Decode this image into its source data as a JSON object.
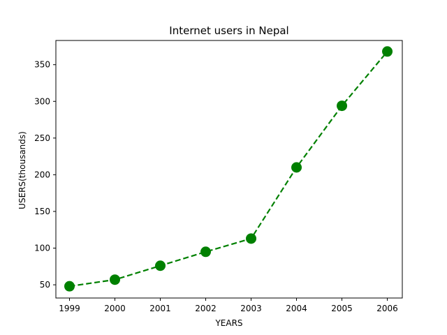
{
  "chart_data": {
    "type": "line",
    "title": "Internet users in Nepal",
    "xlabel": "YEARS",
    "ylabel": "USERS(thousands)",
    "x": [
      1999,
      2000,
      2001,
      2002,
      2003,
      2004,
      2005,
      2006
    ],
    "series": [
      {
        "values": [
          48,
          57,
          76,
          95,
          113,
          210,
          294,
          368
        ],
        "color": "#008000",
        "line_style": "dashed",
        "marker": "circle"
      }
    ],
    "xlim": [
      1998.7,
      2006.33
    ],
    "ylim": [
      32.0,
      383.0
    ],
    "xticks": [
      1999,
      2000,
      2001,
      2002,
      2003,
      2004,
      2005,
      2006
    ],
    "yticks": [
      50,
      100,
      150,
      200,
      250,
      300,
      350
    ],
    "grid": false,
    "legend": "none"
  }
}
